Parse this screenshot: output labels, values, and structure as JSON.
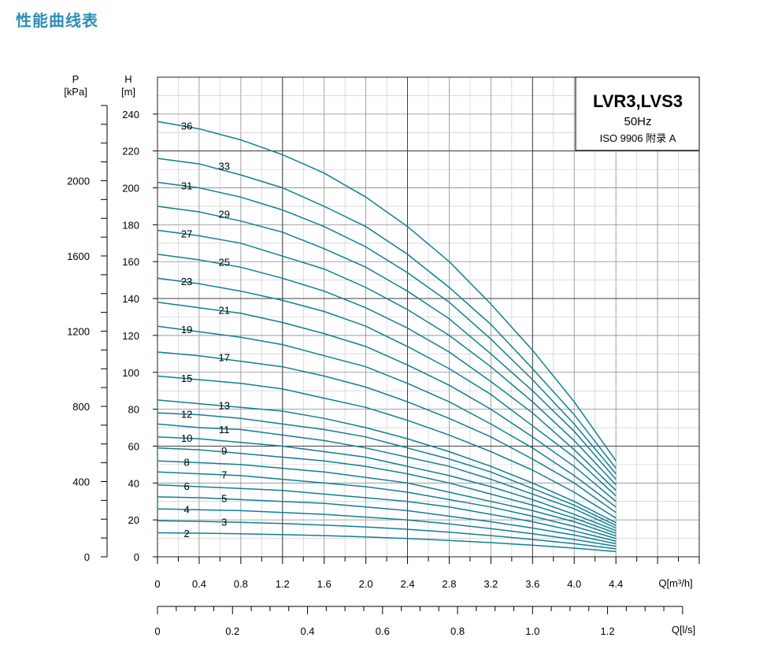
{
  "page": {
    "heading": "性能曲线表"
  },
  "chart_data": {
    "type": "line",
    "title_box": {
      "model": "LVR3,LVS3",
      "frequency": "50Hz",
      "standard": "ISO 9906  附录 A"
    },
    "y_axis_P": {
      "label": "P",
      "unit": "[kPa]",
      "ticks": [
        0,
        400,
        800,
        1200,
        1600,
        2000
      ]
    },
    "y_axis_H": {
      "label": "H",
      "unit": "[m]",
      "ticks": [
        0,
        20,
        40,
        60,
        80,
        100,
        120,
        140,
        160,
        180,
        200,
        220,
        240
      ],
      "ylim": [
        0,
        260
      ]
    },
    "x_axis_Q": {
      "label": "Q[m³/h]",
      "ticks": [
        "0",
        "0.4",
        "0.8",
        "1.2",
        "1.6",
        "2.0",
        "2.4",
        "2.8",
        "3.2",
        "3.6",
        "4.0",
        "4.4"
      ],
      "xlim": [
        0,
        5.2
      ]
    },
    "x_axis_Qls": {
      "label": "Q[l/s]",
      "ticks": [
        "0",
        "0.2",
        "0.4",
        "0.6",
        "0.8",
        "1.0",
        "1.2"
      ]
    },
    "grid": true,
    "x": [
      0,
      0.4,
      0.8,
      1.2,
      1.6,
      2.0,
      2.4,
      2.8,
      3.2,
      3.6,
      4.0,
      4.4
    ],
    "series": [
      {
        "name": "36",
        "values": [
          236,
          232,
          226,
          218,
          208,
          195,
          179,
          160,
          137,
          112,
          84,
          52
        ]
      },
      {
        "name": "33",
        "values": [
          216,
          213,
          207,
          200,
          190,
          179,
          164,
          146,
          126,
          102,
          77,
          48
        ]
      },
      {
        "name": "31",
        "values": [
          203,
          200,
          195,
          188,
          179,
          168,
          154,
          138,
          118,
          96,
          72,
          45
        ]
      },
      {
        "name": "29",
        "values": [
          190,
          187,
          182,
          176,
          167,
          157,
          144,
          129,
          110,
          90,
          68,
          42
        ]
      },
      {
        "name": "27",
        "values": [
          177,
          174,
          170,
          163,
          156,
          146,
          134,
          120,
          103,
          84,
          63,
          39
        ]
      },
      {
        "name": "25",
        "values": [
          164,
          161,
          157,
          151,
          144,
          135,
          124,
          111,
          95,
          78,
          58,
          36
        ]
      },
      {
        "name": "23",
        "values": [
          151,
          148,
          144,
          139,
          133,
          125,
          114,
          102,
          88,
          71,
          54,
          33
        ]
      },
      {
        "name": "21",
        "values": [
          138,
          135,
          132,
          127,
          121,
          114,
          104,
          93,
          80,
          65,
          49,
          30
        ]
      },
      {
        "name": "19",
        "values": [
          125,
          122,
          119,
          115,
          109,
          103,
          94,
          84,
          72,
          59,
          44,
          27
        ]
      },
      {
        "name": "17",
        "values": [
          111,
          109,
          106,
          103,
          98,
          92,
          84,
          75,
          65,
          53,
          40,
          24
        ]
      },
      {
        "name": "15",
        "values": [
          98,
          96,
          94,
          91,
          86,
          81,
          74,
          66,
          57,
          47,
          35,
          21
        ]
      },
      {
        "name": "13",
        "values": [
          85,
          83,
          81,
          79,
          75,
          70,
          64,
          57,
          49,
          40,
          30,
          18.5
        ]
      },
      {
        "name": "12",
        "values": [
          78,
          77,
          75,
          72,
          69,
          65,
          59,
          53,
          46,
          37,
          28,
          17
        ]
      },
      {
        "name": "11",
        "values": [
          72,
          70,
          69,
          66,
          63,
          59,
          54,
          49,
          42,
          34,
          26,
          15.6
        ]
      },
      {
        "name": "10",
        "values": [
          65,
          64,
          62,
          60,
          57,
          54,
          49,
          44,
          38,
          31,
          23,
          14.2
        ]
      },
      {
        "name": "9",
        "values": [
          59,
          58,
          56,
          54,
          52,
          49,
          45,
          40,
          34,
          28,
          21,
          12.8
        ]
      },
      {
        "name": "8",
        "values": [
          52,
          51,
          50,
          48,
          46,
          43,
          40,
          35,
          30,
          25,
          19,
          11.3
        ]
      },
      {
        "name": "7",
        "values": [
          46,
          45,
          44,
          42,
          40,
          38,
          35,
          31,
          27,
          22,
          16.5,
          9.9
        ]
      },
      {
        "name": "6",
        "values": [
          39,
          38,
          37,
          36,
          34,
          32,
          30,
          27,
          23,
          19,
          14,
          8.5
        ]
      },
      {
        "name": "5",
        "values": [
          32.5,
          32,
          31,
          30,
          29,
          27,
          25,
          22,
          19,
          15.6,
          11.8,
          7.1
        ]
      },
      {
        "name": "4",
        "values": [
          26,
          25.5,
          25,
          24,
          23,
          21.5,
          20,
          17.8,
          15.3,
          12.5,
          9.4,
          5.7
        ]
      },
      {
        "name": "3",
        "values": [
          19.5,
          19.2,
          18.7,
          18,
          17.2,
          16.2,
          14.9,
          13.3,
          11.5,
          9.4,
          7.1,
          4.3
        ]
      },
      {
        "name": "2",
        "values": [
          13,
          12.8,
          12.5,
          12,
          11.5,
          10.8,
          9.9,
          8.9,
          7.7,
          6.3,
          4.7,
          2.8
        ]
      }
    ]
  }
}
